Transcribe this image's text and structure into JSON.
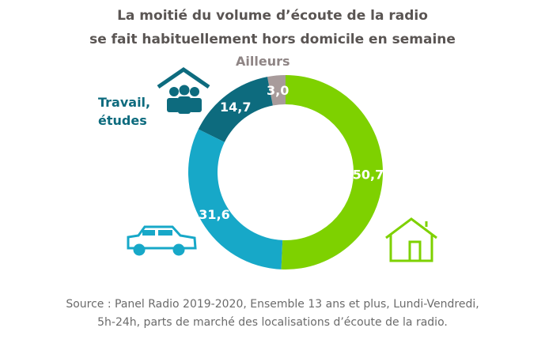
{
  "chart_data": {
    "type": "pie",
    "variant": "donut",
    "title_line1": "La moitié du volume d’écoute de la radio",
    "title_line2": "se fait habituellement hors domicile en semaine",
    "slices": [
      {
        "label": "",
        "icon": "house-icon",
        "value": 50.7,
        "value_label": "50,7",
        "color": "#7ed100"
      },
      {
        "label": "",
        "icon": "car-icon",
        "value": 31.6,
        "value_label": "31,6",
        "color": "#17a8c8"
      },
      {
        "label": "Travail, études",
        "label_line1": "Travail,",
        "label_line2": "études",
        "icon": "office-people-icon",
        "value": 14.7,
        "value_label": "14,7",
        "color": "#0d6b7e"
      },
      {
        "label": "Ailleurs",
        "value": 3.0,
        "value_label": "3,0",
        "color": "#a89b9b"
      }
    ],
    "source_line1": "Source : Panel Radio 2019-2020, Ensemble 13 ans et plus, Lundi-Vendredi,",
    "source_line2": "5h-24h, parts de marché des localisations d’écoute de la radio."
  }
}
